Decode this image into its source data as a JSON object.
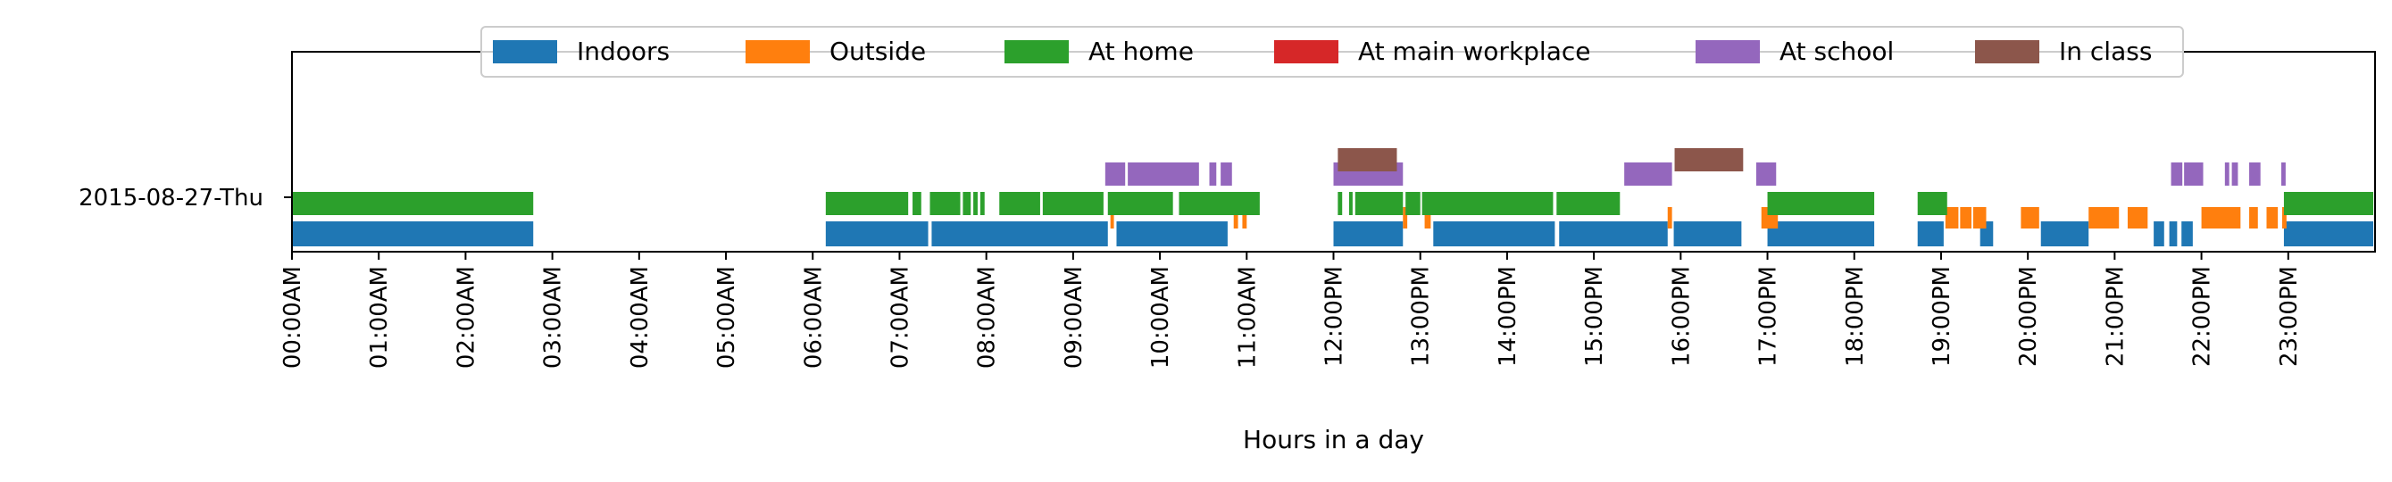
{
  "chart_data": {
    "type": "bar",
    "orientation": "horizontal-timeline",
    "xlabel": "Hours in a day",
    "ylabel": "",
    "xlim": [
      0,
      24
    ],
    "grid": false,
    "legend_position": "top-center",
    "categories": [
      "2015-08-27-Thu"
    ],
    "x_tick_labels": [
      "00:00AM",
      "01:00AM",
      "02:00AM",
      "03:00AM",
      "04:00AM",
      "05:00AM",
      "06:00AM",
      "07:00AM",
      "08:00AM",
      "09:00AM",
      "10:00AM",
      "11:00AM",
      "12:00PM",
      "13:00PM",
      "14:00PM",
      "15:00PM",
      "16:00PM",
      "17:00PM",
      "18:00PM",
      "19:00PM",
      "20:00PM",
      "21:00PM",
      "22:00PM",
      "23:00PM"
    ],
    "series": [
      {
        "name": "Indoors",
        "color": "#1f77b4",
        "intervals": [
          [
            0.0,
            2.78
          ],
          [
            6.15,
            7.33
          ],
          [
            7.37,
            9.4
          ],
          [
            9.5,
            10.78
          ],
          [
            12.0,
            12.8
          ],
          [
            13.15,
            14.55
          ],
          [
            14.6,
            15.85
          ],
          [
            15.92,
            16.7
          ],
          [
            17.0,
            18.23
          ],
          [
            18.73,
            19.03
          ],
          [
            19.45,
            19.6
          ],
          [
            20.15,
            20.7
          ],
          [
            21.45,
            21.57
          ],
          [
            21.63,
            21.72
          ],
          [
            21.77,
            21.9
          ],
          [
            22.95,
            23.98
          ]
        ]
      },
      {
        "name": "Outside",
        "color": "#ff7f0e",
        "intervals": [
          [
            9.43,
            9.47
          ],
          [
            10.85,
            10.9
          ],
          [
            10.95,
            11.0
          ],
          [
            12.8,
            12.85
          ],
          [
            13.05,
            13.12
          ],
          [
            15.85,
            15.9
          ],
          [
            16.93,
            17.12
          ],
          [
            19.05,
            19.2
          ],
          [
            19.22,
            19.35
          ],
          [
            19.37,
            19.52
          ],
          [
            19.92,
            20.13
          ],
          [
            20.7,
            21.05
          ],
          [
            21.15,
            21.38
          ],
          [
            22.0,
            22.45
          ],
          [
            22.55,
            22.65
          ],
          [
            22.75,
            22.88
          ],
          [
            22.93,
            22.98
          ]
        ]
      },
      {
        "name": "At home",
        "color": "#2ca02c",
        "intervals": [
          [
            0.0,
            2.78
          ],
          [
            6.15,
            7.1
          ],
          [
            7.15,
            7.25
          ],
          [
            7.35,
            7.7
          ],
          [
            7.73,
            7.82
          ],
          [
            7.85,
            7.9
          ],
          [
            7.93,
            7.98
          ],
          [
            8.15,
            8.62
          ],
          [
            8.65,
            9.35
          ],
          [
            9.4,
            10.15
          ],
          [
            10.22,
            11.15
          ],
          [
            12.05,
            12.1
          ],
          [
            12.18,
            12.22
          ],
          [
            12.25,
            12.8
          ],
          [
            12.83,
            13.0
          ],
          [
            13.02,
            14.53
          ],
          [
            14.57,
            15.3
          ],
          [
            17.0,
            18.23
          ],
          [
            18.73,
            19.07
          ],
          [
            22.95,
            23.98
          ]
        ]
      },
      {
        "name": "At main workplace",
        "color": "#d62728",
        "intervals": []
      },
      {
        "name": "At school",
        "color": "#9467bd",
        "intervals": [
          [
            9.37,
            9.6
          ],
          [
            9.63,
            10.45
          ],
          [
            10.57,
            10.65
          ],
          [
            10.7,
            10.83
          ],
          [
            12.0,
            12.8
          ],
          [
            15.35,
            15.9
          ],
          [
            16.87,
            17.1
          ],
          [
            21.65,
            21.78
          ],
          [
            21.8,
            22.02
          ],
          [
            22.27,
            22.32
          ],
          [
            22.35,
            22.42
          ],
          [
            22.55,
            22.68
          ],
          [
            22.92,
            22.97
          ]
        ]
      },
      {
        "name": "In class",
        "color": "#8c564b",
        "intervals": [
          [
            12.05,
            12.73
          ],
          [
            15.93,
            16.72
          ]
        ]
      }
    ]
  }
}
